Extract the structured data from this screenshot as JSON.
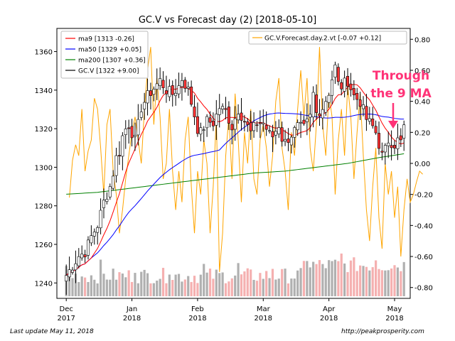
{
  "chart_data": {
    "type": "candlestick",
    "title": "GC.V vs Forecast day (2)  [2018-05-10]",
    "left_axis": {
      "ylim": [
        1232,
        1372
      ],
      "ticks": [
        1240,
        1260,
        1280,
        1300,
        1320,
        1340,
        1360
      ]
    },
    "right_axis": {
      "ylim": [
        -0.87,
        0.87
      ],
      "ticks": [
        -0.8,
        -0.6,
        -0.4,
        -0.2,
        0.0,
        0.2,
        0.4,
        0.6,
        0.8
      ],
      "tick_labels": [
        "-0.80",
        "-0.60",
        "-0.40",
        "-0.20",
        "0.00",
        "0.20",
        "0.40",
        "0.60",
        "0.80"
      ]
    },
    "x_ticks": [
      {
        "label1": "Dec",
        "label2": "2017",
        "x": 0
      },
      {
        "label1": "Jan",
        "label2": "2018",
        "x": 21
      },
      {
        "label1": "Feb",
        "label2": "2018",
        "x": 42
      },
      {
        "label1": "Mar",
        "label2": "2018",
        "x": 63
      },
      {
        "label1": "Apr",
        "label2": "2018",
        "x": 84
      },
      {
        "label1": "May",
        "label2": "2018",
        "x": 105
      }
    ],
    "x_range": [
      -3,
      110
    ],
    "grid": false,
    "legend_left": [
      {
        "name": "ma9 [1313 -0.26]",
        "color": "#ff0000"
      },
      {
        "name": "ma50 [1329 +0.05]",
        "color": "#0000ff"
      },
      {
        "name": "ma200 [1307 +0.36]",
        "color": "#008000"
      },
      {
        "name": "GC.V [1322 +9.00]",
        "color": "#000000"
      }
    ],
    "legend_right": [
      {
        "name": "GC.V.Forecast.day.2.vt [-0.07 +0.12]",
        "color": "#ffa500"
      }
    ],
    "annotation": {
      "text_line1": "Through",
      "text_line2": "the 9 MA",
      "color": "#ff3377"
    },
    "colors": {
      "up": "#ffffff",
      "down": "#ff3333",
      "vol_up": "#b0b0b0",
      "vol_down": "#f5b0b0",
      "ma9": "#ff0000",
      "ma50": "#0000ff",
      "ma200": "#008000",
      "forecast": "#ffa500"
    },
    "anchors_close": [
      [
        0,
        1244
      ],
      [
        4,
        1254
      ],
      [
        6,
        1256
      ],
      [
        8,
        1264
      ],
      [
        10,
        1270
      ],
      [
        12,
        1282
      ],
      [
        14,
        1290
      ],
      [
        15,
        1297
      ],
      [
        16,
        1305
      ],
      [
        17,
        1308
      ],
      [
        18,
        1316
      ],
      [
        19,
        1320
      ],
      [
        20,
        1322
      ],
      [
        21,
        1318
      ],
      [
        22,
        1314
      ],
      [
        23,
        1322
      ],
      [
        24,
        1331
      ],
      [
        25,
        1334
      ],
      [
        26,
        1337
      ],
      [
        28,
        1341
      ],
      [
        30,
        1345
      ],
      [
        32,
        1340
      ],
      [
        34,
        1338
      ],
      [
        36,
        1342
      ],
      [
        37,
        1346
      ],
      [
        39,
        1340
      ],
      [
        41,
        1327
      ],
      [
        42,
        1320
      ],
      [
        43,
        1318
      ],
      [
        45,
        1324
      ],
      [
        47,
        1323
      ],
      [
        49,
        1331
      ],
      [
        51,
        1329
      ],
      [
        53,
        1321
      ],
      [
        55,
        1330
      ],
      [
        57,
        1324
      ],
      [
        59,
        1318
      ],
      [
        61,
        1323
      ],
      [
        63,
        1323
      ],
      [
        65,
        1317
      ],
      [
        66,
        1316
      ],
      [
        68,
        1322
      ],
      [
        69,
        1315
      ],
      [
        70,
        1313
      ],
      [
        72,
        1317
      ],
      [
        74,
        1321
      ],
      [
        76,
        1320
      ],
      [
        78,
        1326
      ],
      [
        79,
        1338
      ],
      [
        80,
        1328
      ],
      [
        82,
        1331
      ],
      [
        84,
        1339
      ],
      [
        85,
        1346
      ],
      [
        86,
        1352
      ],
      [
        87,
        1343
      ],
      [
        88,
        1342
      ],
      [
        90,
        1345
      ],
      [
        92,
        1337
      ],
      [
        94,
        1334
      ],
      [
        96,
        1325
      ],
      [
        98,
        1321
      ],
      [
        99,
        1318
      ],
      [
        100,
        1312
      ],
      [
        101,
        1306
      ],
      [
        102,
        1309
      ],
      [
        103,
        1314
      ],
      [
        104,
        1313
      ],
      [
        105,
        1312
      ],
      [
        106,
        1314
      ],
      [
        107,
        1313
      ],
      [
        108,
        1322
      ]
    ],
    "anchors_ma200": [
      [
        0,
        1286
      ],
      [
        10,
        1287
      ],
      [
        20,
        1289
      ],
      [
        30,
        1291
      ],
      [
        40,
        1293
      ],
      [
        50,
        1295
      ],
      [
        60,
        1297
      ],
      [
        70,
        1298
      ],
      [
        80,
        1300
      ],
      [
        90,
        1302
      ],
      [
        100,
        1305
      ],
      [
        108,
        1307
      ]
    ],
    "forecast_values": [
      -0.22,
      0.02,
      0.12,
      0.05,
      0.35,
      -0.05,
      0.08,
      0.15,
      0.42,
      0.35,
      0.1,
      -0.2,
      0.25,
      0.35,
      -0.05,
      -0.2,
      -0.45,
      -0.3,
      -0.1,
      0.05,
      0.2,
      0.3,
      0.15,
      0.0,
      0.35,
      0.6,
      0.75,
      0.25,
      0.55,
      0.3,
      -0.1,
      0.0,
      0.35,
      -0.05,
      -0.3,
      -0.05,
      -0.25,
      0.15,
      0.3,
      -0.15,
      -0.45,
      -0.05,
      -0.2,
      0.15,
      0.0,
      -0.45,
      -0.15,
      0.3,
      -0.7,
      -0.45,
      0.05,
      0.3,
      -0.1,
      0.45,
      0.15,
      -0.25,
      0.2,
      0.0,
      0.35,
      -0.1,
      -0.2,
      0.15,
      0.25,
      0.1,
      -0.15,
      0.05,
      0.4,
      0.55,
      0.1,
      -0.05,
      -0.3,
      0.2,
      0.05,
      0.35,
      0.6,
      0.3,
      0.55,
      0.1,
      -0.05,
      0.25,
      0.75,
      0.25,
      0.05,
      0.45,
      0.3,
      -0.2,
      0.15,
      0.35,
      0.05,
      0.5,
      0.3,
      -0.1,
      0.2,
      0.45,
      0.05,
      -0.3,
      -0.5,
      -0.15,
      0.1,
      -0.35,
      -0.55,
      0.0,
      -0.2,
      -0.05,
      -0.35,
      -0.15,
      -0.6,
      -0.3,
      -0.1,
      -0.25,
      -0.2,
      -0.12,
      -0.05,
      -0.07
    ]
  },
  "footer": {
    "left": "Last update May 11, 2018",
    "right": "http://peakprosperity.com"
  }
}
